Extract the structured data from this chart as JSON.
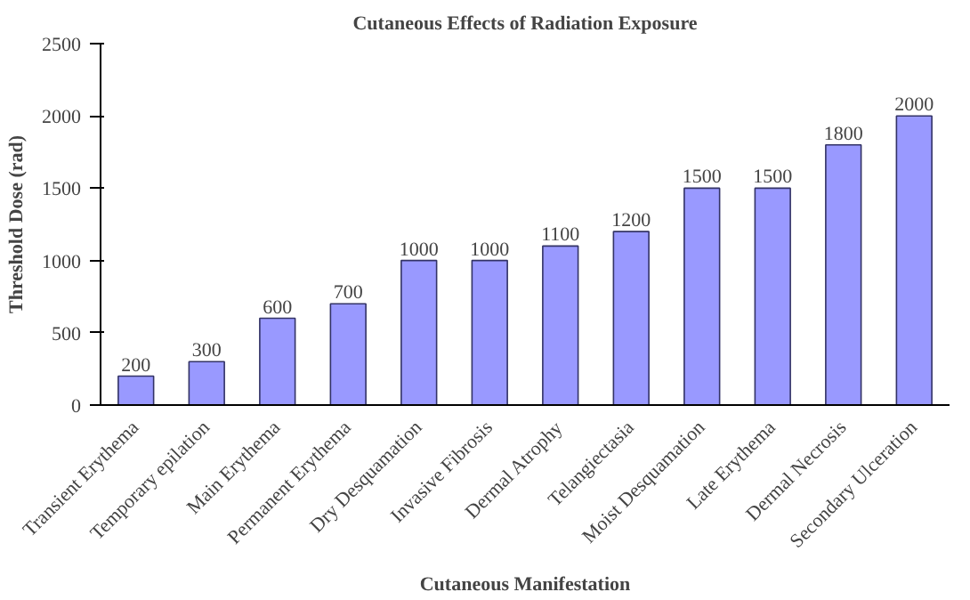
{
  "chart_data": {
    "type": "bar",
    "title": "Cutaneous Effects of Radiation Exposure",
    "xlabel": "Cutaneous Manifestation",
    "ylabel": "Threshold Dose (rad)",
    "categories": [
      "Transient Erythema",
      "Temporary epilation",
      "Main Erythema",
      "Permanent Erythema",
      "Dry Desquamation",
      "Invasive Fibrosis",
      "Dermal Atrophy",
      "Telangiectasia",
      "Moist Desquamation",
      "Late Erythema",
      "Dermal Necrosis",
      "Secondary Ulceration"
    ],
    "values": [
      200,
      300,
      600,
      700,
      1000,
      1000,
      1100,
      1200,
      1500,
      1500,
      1800,
      2000
    ],
    "color": "#9999ff",
    "ylim": [
      0,
      2500
    ],
    "yticks": [
      0,
      500,
      1000,
      1500,
      2000,
      2500
    ],
    "grid": false,
    "data_labels": true
  }
}
